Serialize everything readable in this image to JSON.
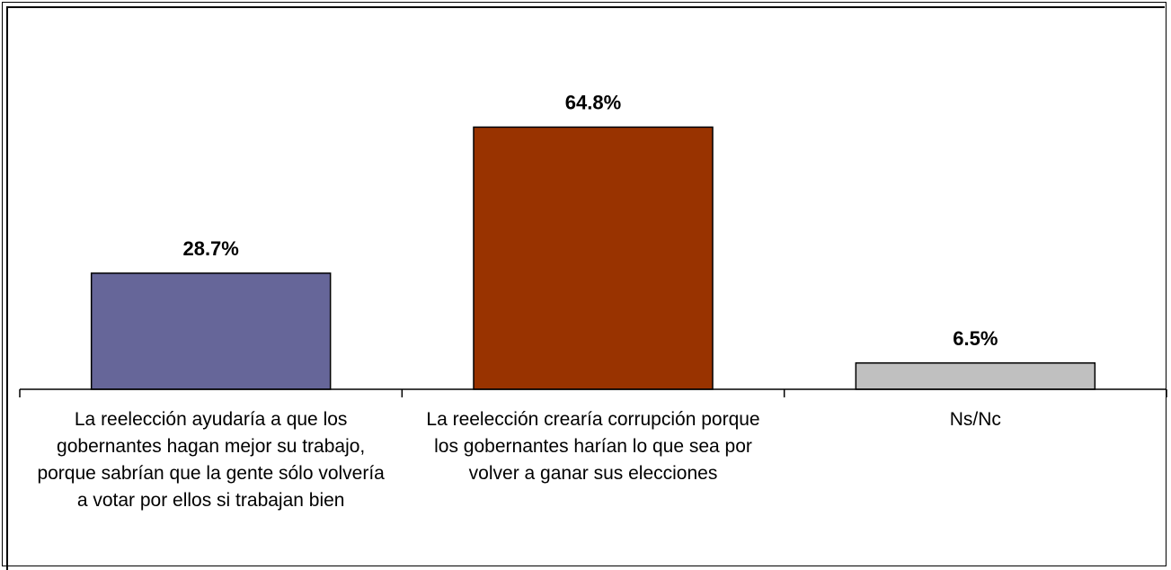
{
  "chart_data": {
    "type": "bar",
    "title": "",
    "xlabel": "",
    "ylabel": "",
    "ylim": [
      0,
      100
    ],
    "grid": false,
    "categories": [
      "La reelección ayudaría a que los gobernantes hagan mejor su trabajo, porque sabrían que la gente sólo volvería a votar por ellos si trabajan bien",
      "La reelección crearía corrupción porque los gobernantes harían lo que sea por volver a ganar sus elecciones",
      "Ns/Nc"
    ],
    "values": [
      28.7,
      64.8,
      6.5
    ],
    "data_labels": [
      "28.7%",
      "64.8%",
      "6.5%"
    ],
    "colors": [
      "#666699",
      "#993300",
      "#C0C0C0"
    ]
  }
}
